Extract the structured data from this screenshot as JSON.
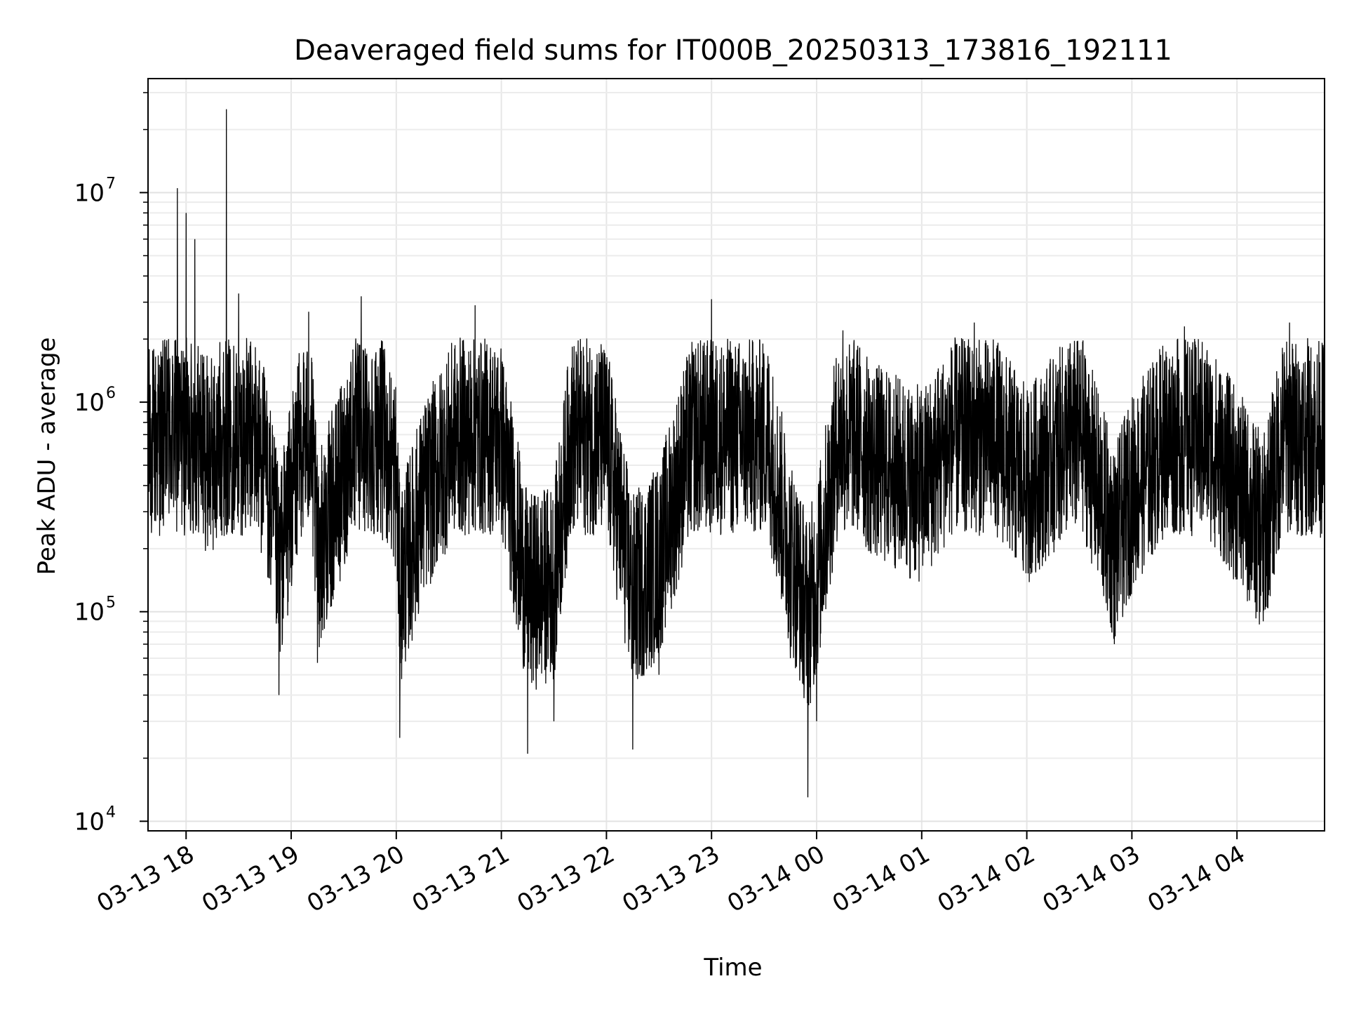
{
  "chart_data": {
    "type": "line",
    "title": "Deaveraged field sums for IT000B_20250313_173816_192111",
    "xlabel": "Time",
    "ylabel": "Peak ADU - average",
    "x_range": [
      "2025-03-13 17:38:16",
      "2025-03-14 04:50:00"
    ],
    "yscale": "log",
    "ylim": [
      9000,
      35000000
    ],
    "grid": "on (major and minor)",
    "x_ticks": [
      {
        "label": "03-13 18",
        "time": "2025-03-13 18:00"
      },
      {
        "label": "03-13 19",
        "time": "2025-03-13 19:00"
      },
      {
        "label": "03-13 20",
        "time": "2025-03-13 20:00"
      },
      {
        "label": "03-13 21",
        "time": "2025-03-13 21:00"
      },
      {
        "label": "03-13 22",
        "time": "2025-03-13 22:00"
      },
      {
        "label": "03-13 23",
        "time": "2025-03-13 23:00"
      },
      {
        "label": "03-14 00",
        "time": "2025-03-14 00:00"
      },
      {
        "label": "03-14 01",
        "time": "2025-03-14 01:00"
      },
      {
        "label": "03-14 02",
        "time": "2025-03-14 02:00"
      },
      {
        "label": "03-14 03",
        "time": "2025-03-14 03:00"
      },
      {
        "label": "03-14 04",
        "time": "2025-03-14 04:00"
      }
    ],
    "y_ticks": [
      {
        "base": "10",
        "exp": "4",
        "value": 10000
      },
      {
        "base": "10",
        "exp": "5",
        "value": 100000
      },
      {
        "base": "10",
        "exp": "6",
        "value": 1000000
      },
      {
        "base": "10",
        "exp": "7",
        "value": 10000000
      }
    ],
    "series": [
      {
        "color": "#000000",
        "points": [
          [
            "2025-03-13 17:38",
            800000
          ],
          [
            "2025-03-13 17:45",
            1000000
          ],
          [
            "2025-03-13 17:50",
            2000000
          ],
          [
            "2025-03-13 17:55",
            10500000
          ],
          [
            "2025-03-13 18:00",
            8000000
          ],
          [
            "2025-03-13 18:05",
            6000000
          ],
          [
            "2025-03-13 18:10",
            700000
          ],
          [
            "2025-03-13 18:18",
            600000
          ],
          [
            "2025-03-13 18:23",
            25000000
          ],
          [
            "2025-03-13 18:30",
            3300000
          ],
          [
            "2025-03-13 18:45",
            500000
          ],
          [
            "2025-03-13 18:53",
            40000
          ],
          [
            "2025-03-13 19:10",
            2700000
          ],
          [
            "2025-03-13 19:15",
            57000
          ],
          [
            "2025-03-13 19:30",
            400000
          ],
          [
            "2025-03-13 19:40",
            3200000
          ],
          [
            "2025-03-13 20:00",
            400000
          ],
          [
            "2025-03-13 20:02",
            25000
          ],
          [
            "2025-03-13 20:15",
            200000
          ],
          [
            "2025-03-13 20:45",
            2900000
          ],
          [
            "2025-03-13 21:00",
            900000
          ],
          [
            "2025-03-13 21:15",
            21000
          ],
          [
            "2025-03-13 21:30",
            30000
          ],
          [
            "2025-03-13 21:40",
            1200000
          ],
          [
            "2025-03-13 22:00",
            900000
          ],
          [
            "2025-03-13 22:15",
            22000
          ],
          [
            "2025-03-13 22:30",
            50000
          ],
          [
            "2025-03-13 22:45",
            600000
          ],
          [
            "2025-03-13 23:00",
            3100000
          ],
          [
            "2025-03-13 23:30",
            1500000
          ],
          [
            "2025-03-13 23:45",
            60000
          ],
          [
            "2025-03-13 23:55",
            13000
          ],
          [
            "2025-03-14 00:00",
            30000
          ],
          [
            "2025-03-14 00:15",
            2200000
          ],
          [
            "2025-03-14 00:30",
            600000
          ],
          [
            "2025-03-14 01:00",
            300000
          ],
          [
            "2025-03-14 01:30",
            2400000
          ],
          [
            "2025-03-14 02:00",
            300000
          ],
          [
            "2025-03-14 02:30",
            1400000
          ],
          [
            "2025-03-14 02:50",
            70000
          ],
          [
            "2025-03-14 03:00",
            250000
          ],
          [
            "2025-03-14 03:30",
            2300000
          ],
          [
            "2025-03-14 04:00",
            300000
          ],
          [
            "2025-03-14 04:15",
            90000
          ],
          [
            "2025-03-14 04:30",
            2400000
          ],
          [
            "2025-03-14 04:40",
            1200000
          ],
          [
            "2025-03-14 04:50",
            900000
          ]
        ]
      }
    ]
  }
}
